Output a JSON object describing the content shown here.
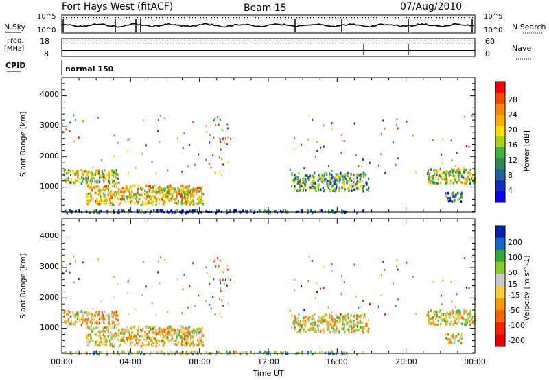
{
  "header": {
    "station": "Fort Hays West (fitACF)",
    "beam": "Beam 15",
    "date": "07/Aug/2010"
  },
  "top_panels": {
    "nsky_label": "N.Sky",
    "nsky_hi": "10^5",
    "nsky_lo": "10^0",
    "nsearch_label": "N.Search",
    "nsearch_hi": "10^5",
    "nsearch_lo": "10^0",
    "freq_label": "Freq.",
    "freq_unit": "[MHz]",
    "freq_hi": "18",
    "freq_lo": "8",
    "nave_label": "Nave",
    "nave_hi": "60",
    "nave_lo": "0",
    "cpid_label": "CPID",
    "cpid_value": "normal 150"
  },
  "axes": {
    "ylabel": "Slant Range [km]",
    "xlabel": "Time UT",
    "y_ticks": [
      "4000",
      "3000",
      "2000",
      "1000"
    ],
    "x_ticks": [
      "00:00",
      "04:00",
      "08:00",
      "12:00",
      "16:00",
      "20:00",
      "00:00"
    ]
  },
  "colorbars": {
    "power": {
      "label": "Power [dB]",
      "ticks": [
        "28",
        "24",
        "20",
        "16",
        "12",
        "8",
        "4"
      ],
      "colors": [
        "#ff0000",
        "#ff4400",
        "#ff8800",
        "#ffaa00",
        "#ffdd00",
        "#a8d020",
        "#40b040",
        "#2e8b57",
        "#2060a0",
        "#1030c0",
        "#0000ff"
      ]
    },
    "velocity": {
      "label": "Velocity [m s^-1]",
      "ticks": [
        "200",
        "100",
        "50",
        "15",
        "-15",
        "-50",
        "-100",
        "-200"
      ],
      "colors": [
        "#0022aa",
        "#1a66cc",
        "#33aa33",
        "#88cc33",
        "#c8c8c8",
        "#ffcc33",
        "#ff9900",
        "#ff6600",
        "#ff2200",
        "#ee0000"
      ]
    }
  },
  "chart_data": [
    {
      "type": "heatmap",
      "title": "Power",
      "xlabel": "Time UT",
      "ylabel": "Slant Range [km]",
      "x_range": [
        0,
        24
      ],
      "x_unit": "hours UT",
      "ylim": [
        180,
        4600
      ],
      "colorbar_label": "Power [dB]",
      "colorbar_range": [
        0,
        32
      ],
      "regions": [
        {
          "t0": 0.1,
          "t1": 3.3,
          "r0": 1150,
          "r1": 1600,
          "value": 16
        },
        {
          "t0": 1.4,
          "t1": 8.2,
          "r0": 450,
          "r1": 1100,
          "value": 20
        },
        {
          "t0": 13.3,
          "t1": 17.8,
          "r0": 900,
          "r1": 1500,
          "value": 12
        },
        {
          "t0": 21.2,
          "t1": 24.0,
          "r0": 1150,
          "r1": 1650,
          "value": 16
        },
        {
          "t0": 22.2,
          "t1": 23.3,
          "r0": 550,
          "r1": 850,
          "value": 8
        },
        {
          "t0": 0.1,
          "t1": 17.5,
          "r0": 180,
          "r1": 280,
          "value": 6
        }
      ]
    },
    {
      "type": "heatmap",
      "title": "Velocity",
      "xlabel": "Time UT",
      "ylabel": "Slant Range [km]",
      "x_range": [
        0,
        24
      ],
      "x_unit": "hours UT",
      "ylim": [
        180,
        4600
      ],
      "colorbar_label": "Velocity [m s^-1]",
      "colorbar_range": [
        -250,
        250
      ],
      "regions": [
        {
          "t0": 0.1,
          "t1": 3.3,
          "r0": 1150,
          "r1": 1600,
          "value": -30
        },
        {
          "t0": 1.4,
          "t1": 8.2,
          "r0": 450,
          "r1": 1100,
          "value": -10
        },
        {
          "t0": 13.3,
          "t1": 17.8,
          "r0": 900,
          "r1": 1500,
          "value": 0
        },
        {
          "t0": 21.2,
          "t1": 24.0,
          "r0": 1150,
          "r1": 1650,
          "value": 5
        },
        {
          "t0": 22.2,
          "t1": 23.3,
          "r0": 550,
          "r1": 850,
          "value": 0
        },
        {
          "t0": 0.1,
          "t1": 17.5,
          "r0": 180,
          "r1": 280,
          "value": 60
        }
      ]
    }
  ]
}
